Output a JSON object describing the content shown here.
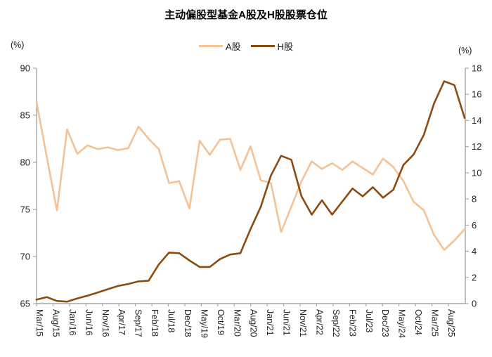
{
  "title": "主动偏股型基金A股及H股股票仓位",
  "left_axis_unit": "(%)",
  "right_axis_unit": "(%)",
  "colors": {
    "a_share_line": "#F5C296",
    "h_share_line": "#8C4B11",
    "axis_line": "#A6A6A6",
    "tick_text": "#262626",
    "title_text": "#000000"
  },
  "chart_data": {
    "type": "line",
    "title": "主动偏股型基金A股及H股股票仓位",
    "legend": [
      "A股",
      "H股"
    ],
    "legend_position": "top",
    "grid": false,
    "categories": [
      "Mar/15",
      "Jun/15",
      "Sep/15",
      "Dec/15",
      "Mar/16",
      "Jun/16",
      "Sep/16",
      "Dec/16",
      "Mar/17",
      "Jun/17",
      "Sep/17",
      "Dec/17",
      "Mar/18",
      "Jun/18",
      "Sep/18",
      "Dec/18",
      "Mar/19",
      "Jun/19",
      "Sep/19",
      "Dec/19",
      "Mar/20",
      "Jun/20",
      "Sep/20",
      "Dec/20",
      "Mar/21",
      "Jun/21",
      "Sep/21",
      "Dec/21",
      "Mar/22",
      "Jun/22",
      "Sep/22",
      "Dec/22",
      "Mar/23",
      "Jun/23",
      "Sep/23",
      "Dec/23",
      "Mar/24",
      "Jun/24",
      "Sep/24",
      "Dec/24",
      "Mar/25",
      "Jun/25",
      "Sep/25"
    ],
    "x_tick_labels": [
      "Mar/15",
      "Aug/15",
      "Jan/16",
      "Jun/16",
      "Nov/16",
      "Apr/17",
      "Sep/17",
      "Feb/18",
      "Jul/18",
      "Dec/18",
      "May/19",
      "Oct/19",
      "Mar/20",
      "Aug/20",
      "Jan/21",
      "Jun/21",
      "Nov/21",
      "Apr/22",
      "Sep/22",
      "Feb/23",
      "Jul/23",
      "Dec/23",
      "May/24",
      "Oct/24",
      "Mar/25",
      "Aug/25"
    ],
    "left_axis": {
      "label": "(%)",
      "min": 65,
      "max": 90,
      "ticks": [
        90,
        85,
        80,
        75,
        70,
        65
      ]
    },
    "right_axis": {
      "label": "(%)",
      "min": 0,
      "max": 18,
      "ticks": [
        18,
        16,
        14,
        12,
        10,
        8,
        6,
        4,
        2,
        0
      ]
    },
    "series": [
      {
        "name": "A股",
        "axis": "left",
        "color": "#F5C296",
        "values": [
          86.4,
          80.6,
          74.9,
          83.5,
          80.9,
          81.8,
          81.4,
          81.6,
          81.3,
          81.5,
          83.8,
          82.5,
          81.4,
          77.8,
          78.0,
          75.1,
          82.3,
          80.8,
          82.4,
          82.5,
          79.2,
          81.7,
          78.1,
          77.8,
          72.6,
          75.3,
          78.0,
          80.1,
          79.3,
          79.9,
          79.2,
          80.1,
          79.4,
          78.7,
          80.4,
          79.5,
          78.0,
          75.8,
          74.9,
          72.3,
          70.7,
          71.7,
          72.9
        ]
      },
      {
        "name": "H股",
        "axis": "right",
        "color": "#8C4B11",
        "values": [
          0.3,
          0.5,
          0.2,
          0.15,
          0.4,
          0.6,
          0.85,
          1.1,
          1.35,
          1.5,
          1.7,
          1.75,
          3.0,
          3.9,
          3.85,
          3.3,
          2.8,
          2.8,
          3.4,
          3.75,
          3.85,
          5.7,
          7.4,
          9.8,
          11.3,
          11.0,
          8.2,
          6.8,
          7.9,
          6.8,
          7.8,
          8.8,
          8.2,
          8.9,
          8.1,
          8.7,
          10.6,
          11.4,
          12.9,
          15.3,
          17.0,
          16.7,
          14.2
        ]
      }
    ]
  }
}
